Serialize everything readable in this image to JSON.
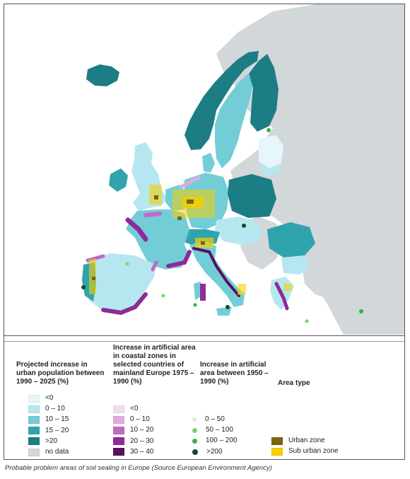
{
  "colors": {
    "sea": "#ffffff",
    "nodata": "#d2d7da",
    "cat_lt0": "#e6f6fb",
    "cat_0_10": "#b6e7f0",
    "cat_10_15": "#73cdd6",
    "cat_15_20": "#2fa4ad",
    "cat_gt20": "#1c7d84",
    "coast_lt0": "#f3dcef",
    "coast_0_10": "#e2aade",
    "coast_10_20": "#c06ac4",
    "coast_20_30": "#8f2a9a",
    "coast_30_40": "#55105e",
    "dot_0_50": "#d8f0d0",
    "dot_50_100": "#7dd071",
    "dot_100_200": "#2fb54a",
    "dot_gt200": "#0d4a2a",
    "urban": "#7a6410",
    "suburban": "#f5d000"
  },
  "legend": {
    "population": {
      "title": "Projected increase in urban population between 1990 – 2025 (%)",
      "items": [
        {
          "label": "<0",
          "color": "#e6f6fb"
        },
        {
          "label": "0 – 10",
          "color": "#b6e7f0"
        },
        {
          "label": "10 – 15",
          "color": "#73cdd6"
        },
        {
          "label": "15 – 20",
          "color": "#2fa4ad"
        },
        {
          "label": ">20",
          "color": "#1c7d84"
        },
        {
          "label": "no data",
          "color": "#d2d7da"
        }
      ]
    },
    "coastal": {
      "title": "Increase in artificial area in coastal zones in selected countries of mainland Europe 1975 – 1990 (%)",
      "items": [
        {
          "label": "<0",
          "color": "#f3dcef"
        },
        {
          "label": "0 – 10",
          "color": "#e2aade"
        },
        {
          "label": "10 – 20",
          "color": "#c06ac4"
        },
        {
          "label": "20 – 30",
          "color": "#8f2a9a"
        },
        {
          "label": "30 – 40",
          "color": "#55105e"
        }
      ]
    },
    "artificial": {
      "title": "Increase in artificial area between 1950 – 1990 (%)",
      "items": [
        {
          "label": "0 – 50",
          "color": "#d8f0d0"
        },
        {
          "label": "50 – 100",
          "color": "#7dd071"
        },
        {
          "label": "100 – 200",
          "color": "#2fb54a"
        },
        {
          "label": ">200",
          "color": "#0d4a2a"
        }
      ]
    },
    "area_type": {
      "title": "Area type",
      "items": [
        {
          "label": "Urban zone",
          "color": "#7a6410"
        },
        {
          "label": "Sub urban zone",
          "color": "#f5d000"
        }
      ]
    }
  },
  "caption": "Probable problem areas of soil sealing in Europe (Source European Environment Agency)"
}
